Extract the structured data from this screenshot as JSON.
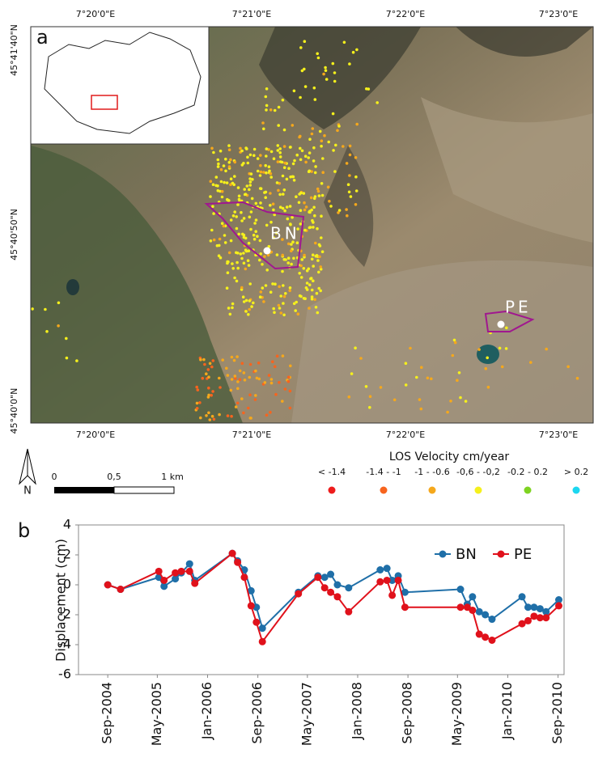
{
  "map": {
    "panel_label": "a",
    "top_longitude_labels": [
      "7°20'0\"E",
      "7°21'0\"E",
      "7°22'0\"E",
      "7°23'0\"E"
    ],
    "bottom_longitude_labels": [
      "7°20'0\"E",
      "7°21'0\"E",
      "7°22'0\"E",
      "7°23'0\"E"
    ],
    "latitude_labels": [
      "45°41'40\"N",
      "45°40'50\"N",
      "45°40'0\"N"
    ],
    "sites": [
      "BN",
      "PE"
    ],
    "legend": {
      "title": "LOS Velocity cm/year",
      "classes": [
        {
          "label": "< -1.4",
          "color": "#ee1c1c"
        },
        {
          "label": "-1.4 - -1",
          "color": "#f7641e"
        },
        {
          "label": "-1 - -0.6",
          "color": "#f5a81c"
        },
        {
          "label": "-0,6 - -0,2",
          "color": "#f5f01c"
        },
        {
          "label": "-0.2 - 0.2",
          "color": "#7ed321"
        },
        {
          "label": "> 0.2",
          "color": "#1cd7f0"
        }
      ]
    },
    "scale_bar": [
      "0",
      "0,5",
      "1 km"
    ],
    "north": "N"
  },
  "chart_data": {
    "type": "line",
    "panel_label": "b",
    "y_label": "Displacement (cm)",
    "x": [
      2004.67,
      2004.84,
      2005.35,
      2005.42,
      2005.57,
      2005.65,
      2005.76,
      2005.83,
      2006.33,
      2006.4,
      2006.49,
      2006.58,
      2006.65,
      2006.73,
      2007.21,
      2007.47,
      2007.56,
      2007.64,
      2007.73,
      2007.88,
      2008.3,
      2008.39,
      2008.46,
      2008.54,
      2008.63,
      2009.37,
      2009.46,
      2009.53,
      2009.62,
      2009.7,
      2009.79,
      2010.19,
      2010.27,
      2010.35,
      2010.43,
      2010.51,
      2010.68
    ],
    "series": [
      {
        "name": "BN",
        "color": "#1f6fa8",
        "values": [
          0,
          -0.3,
          0.5,
          -0.1,
          0.4,
          0.8,
          1.4,
          0.3,
          2.1,
          1.6,
          1.0,
          -0.4,
          -1.5,
          -2.9,
          -0.5,
          0.6,
          0.5,
          0.7,
          0.0,
          -0.2,
          1.0,
          1.1,
          0.3,
          0.6,
          -0.5,
          -0.3,
          -1.3,
          -0.8,
          -1.8,
          -2.0,
          -2.3,
          -0.8,
          -1.5,
          -1.5,
          -1.6,
          -1.8,
          -1.0
        ]
      },
      {
        "name": "PE",
        "color": "#e0111b",
        "values": [
          0,
          -0.3,
          0.9,
          0.3,
          0.8,
          0.9,
          0.9,
          0.1,
          2.1,
          1.5,
          0.5,
          -1.4,
          -2.5,
          -3.8,
          -0.6,
          0.5,
          -0.2,
          -0.5,
          -0.8,
          -1.8,
          0.2,
          0.3,
          -0.7,
          0.3,
          -1.5,
          -1.5,
          -1.5,
          -1.7,
          -3.3,
          -3.5,
          -3.7,
          -2.6,
          -2.4,
          -2.1,
          -2.2,
          -2.2,
          -1.4
        ]
      }
    ],
    "xlim": [
      2004.28,
      2010.75
    ],
    "xticks": [
      {
        "value": 2004.67,
        "label": "Sep-2004"
      },
      {
        "value": 2005.33,
        "label": "May-2005"
      },
      {
        "value": 2006.0,
        "label": "Jan-2006"
      },
      {
        "value": 2006.67,
        "label": "Sep-2006"
      },
      {
        "value": 2007.33,
        "label": "May-2007"
      },
      {
        "value": 2008.0,
        "label": "Jan-2008"
      },
      {
        "value": 2008.67,
        "label": "Sep-2008"
      },
      {
        "value": 2009.33,
        "label": "May-2009"
      },
      {
        "value": 2010.0,
        "label": "Jan-2010"
      },
      {
        "value": 2010.67,
        "label": "Sep-2010"
      }
    ],
    "ylim": [
      -6,
      4
    ],
    "yticks": [
      -6,
      -4,
      -2,
      0,
      2,
      4
    ],
    "legend": "upper right",
    "grid": false
  }
}
